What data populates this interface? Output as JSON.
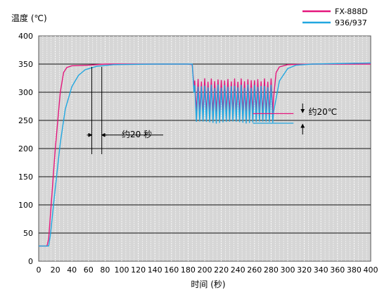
{
  "chart_data": {
    "type": "line",
    "ylabel": "温度 (℃)",
    "xlabel": "时间 (秒)",
    "xlim": [
      0,
      400
    ],
    "ylim": [
      0,
      400
    ],
    "x_ticks": [
      0,
      20,
      40,
      60,
      80,
      100,
      120,
      140,
      160,
      180,
      200,
      220,
      240,
      260,
      280,
      300,
      320,
      340,
      360,
      380,
      400
    ],
    "y_ticks": [
      0,
      50,
      100,
      150,
      200,
      250,
      300,
      350,
      400
    ],
    "grid": true,
    "legend_position": "top-right",
    "series": [
      {
        "name": "FX-888D",
        "color": "#e4177d",
        "points": [
          [
            0,
            27
          ],
          [
            10,
            27
          ],
          [
            12,
            40
          ],
          [
            16,
            120
          ],
          [
            20,
            200
          ],
          [
            26,
            300
          ],
          [
            30,
            335
          ],
          [
            34,
            344
          ],
          [
            40,
            347
          ],
          [
            60,
            348
          ],
          [
            80,
            350
          ],
          [
            140,
            350
          ],
          [
            180,
            350
          ],
          [
            185,
            349
          ]
        ],
        "dip_start": 187,
        "dip_end": 283,
        "dip_low": 262,
        "dip_high": 321,
        "dip_period": 4,
        "recovery": [
          [
            283,
            290
          ],
          [
            286,
            335
          ],
          [
            290,
            345
          ],
          [
            300,
            349
          ],
          [
            330,
            350
          ],
          [
            400,
            350
          ]
        ]
      },
      {
        "name": "936/937",
        "color": "#22a7e0",
        "points": [
          [
            0,
            27
          ],
          [
            12,
            27
          ],
          [
            14,
            45
          ],
          [
            20,
            130
          ],
          [
            26,
            210
          ],
          [
            32,
            270
          ],
          [
            40,
            310
          ],
          [
            48,
            330
          ],
          [
            56,
            340
          ],
          [
            70,
            346
          ],
          [
            90,
            349
          ],
          [
            140,
            350
          ],
          [
            180,
            350
          ],
          [
            185,
            350
          ]
        ],
        "dip_start": 187,
        "dip_end": 283,
        "dip_low": 245,
        "dip_high": 310,
        "dip_period": 4,
        "recovery": [
          [
            283,
            265
          ],
          [
            290,
            320
          ],
          [
            300,
            342
          ],
          [
            310,
            348
          ],
          [
            330,
            350
          ],
          [
            400,
            352
          ]
        ]
      }
    ],
    "annotations": [
      {
        "text": "约20 秒",
        "x": 100,
        "y": 225
      },
      {
        "text": "约20℃",
        "x": 355,
        "y": 265
      }
    ]
  }
}
